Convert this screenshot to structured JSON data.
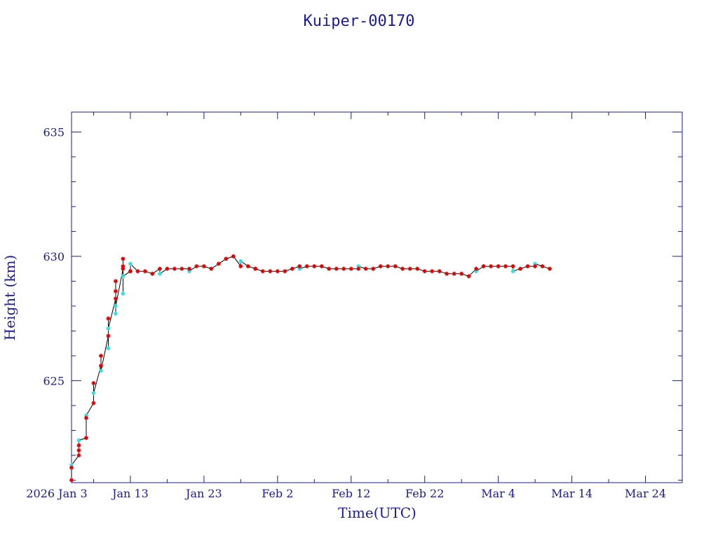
{
  "colors": {
    "axis": "#1a1aa0",
    "text": "#1a1aa0",
    "line": "#000000",
    "series_a": "#e00000",
    "series_b": "#33dddd"
  },
  "chart_data": {
    "type": "scatter",
    "title": "Kuiper-00170",
    "xlabel": "Time(UTC)",
    "ylabel": "Height (km)",
    "x_unit": "date",
    "xlim": [
      "2026-01-05",
      "2026-03-29"
    ],
    "ylim": [
      620.9,
      635.8
    ],
    "yticks": [
      625,
      630,
      635
    ],
    "xticks": [
      {
        "date": "2026-01-03",
        "label": "2026 Jan  3"
      },
      {
        "date": "2026-01-13",
        "label": "Jan 13"
      },
      {
        "date": "2026-01-23",
        "label": "Jan 23"
      },
      {
        "date": "2026-02-02",
        "label": "Feb  2"
      },
      {
        "date": "2026-02-12",
        "label": "Feb 12"
      },
      {
        "date": "2026-02-22",
        "label": "Feb 22"
      },
      {
        "date": "2026-03-04",
        "label": "Mar  4"
      },
      {
        "date": "2026-03-14",
        "label": "Mar 14"
      },
      {
        "date": "2026-03-24",
        "label": "Mar 24"
      }
    ],
    "grid": false,
    "series": [
      {
        "marker": "asterisk",
        "x": [
          "2026-01-05",
          "2026-01-05",
          "2026-01-06",
          "2026-01-06",
          "2026-01-06",
          "2026-01-07",
          "2026-01-07",
          "2026-01-08",
          "2026-01-08",
          "2026-01-09",
          "2026-01-09",
          "2026-01-10",
          "2026-01-10",
          "2026-01-11",
          "2026-01-11",
          "2026-01-11",
          "2026-01-12",
          "2026-01-12",
          "2026-01-12",
          "2026-01-13",
          "2026-01-13",
          "2026-01-14",
          "2026-01-15",
          "2026-01-16",
          "2026-01-17",
          "2026-01-18",
          "2026-01-19",
          "2026-01-20",
          "2026-01-21",
          "2026-01-22",
          "2026-01-23",
          "2026-01-24",
          "2026-01-25",
          "2026-01-26",
          "2026-01-27",
          "2026-01-28",
          "2026-01-29",
          "2026-01-30",
          "2026-01-30",
          "2026-01-31",
          "2026-02-01",
          "2026-02-02",
          "2026-02-03",
          "2026-02-04",
          "2026-02-05",
          "2026-02-06",
          "2026-02-07",
          "2026-02-08",
          "2026-02-09",
          "2026-02-10",
          "2026-02-11",
          "2026-02-12",
          "2026-02-13",
          "2026-02-14",
          "2026-02-15",
          "2026-02-16",
          "2026-02-17",
          "2026-02-18",
          "2026-02-19",
          "2026-02-20",
          "2026-02-21",
          "2026-02-22",
          "2026-02-23",
          "2026-02-24",
          "2026-02-25",
          "2026-02-26",
          "2026-02-27",
          "2026-02-28",
          "2026-03-01",
          "2026-03-02",
          "2026-03-03",
          "2026-03-04",
          "2026-03-05",
          "2026-03-06",
          "2026-03-07",
          "2026-03-08",
          "2026-03-09",
          "2026-03-10",
          "2026-03-11"
        ],
        "y": [
          621.0,
          621.5,
          622.0,
          622.2,
          622.4,
          622.7,
          623.5,
          624.1,
          624.9,
          625.6,
          626.0,
          626.8,
          627.5,
          628.3,
          628.6,
          629.0,
          629.5,
          629.9,
          629.6,
          629.4,
          629.4,
          629.4,
          629.4,
          629.3,
          629.5,
          629.5,
          629.5,
          629.5,
          629.5,
          629.6,
          629.6,
          629.5,
          629.7,
          629.9,
          630.0,
          629.6,
          629.6,
          629.5,
          629.5,
          629.4,
          629.4,
          629.4,
          629.4,
          629.5,
          629.6,
          629.6,
          629.6,
          629.6,
          629.5,
          629.5,
          629.5,
          629.5,
          629.5,
          629.5,
          629.5,
          629.6,
          629.6,
          629.6,
          629.5,
          629.5,
          629.5,
          629.4,
          629.4,
          629.4,
          629.3,
          629.3,
          629.3,
          629.2,
          629.5,
          629.6,
          629.6,
          629.6,
          629.6,
          629.6,
          629.5,
          629.6,
          629.6,
          629.6,
          629.5
        ]
      },
      {
        "marker": "asterisk",
        "x": [
          "2026-01-05",
          "2026-01-06",
          "2026-01-07",
          "2026-01-08",
          "2026-01-09",
          "2026-01-10",
          "2026-01-10",
          "2026-01-11",
          "2026-01-11",
          "2026-01-12",
          "2026-01-12",
          "2026-01-13",
          "2026-01-14",
          "2026-01-17",
          "2026-01-21",
          "2026-01-28",
          "2026-02-05",
          "2026-02-13",
          "2026-02-15",
          "2026-03-01",
          "2026-03-02",
          "2026-03-06",
          "2026-03-09"
        ],
        "y": [
          621.6,
          622.6,
          623.6,
          624.5,
          625.4,
          626.3,
          627.1,
          627.7,
          628.0,
          628.5,
          629.2,
          629.7,
          629.4,
          629.3,
          629.4,
          629.8,
          629.5,
          629.6,
          629.5,
          629.4,
          629.6,
          629.4,
          629.7
        ]
      }
    ]
  }
}
